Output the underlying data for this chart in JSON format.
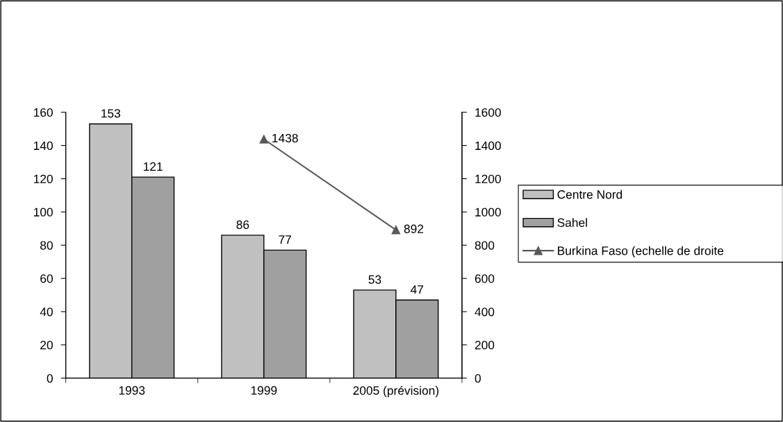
{
  "chart_data": {
    "type": "bar",
    "categories": [
      "1993",
      "1999",
      "2005 (prévision)"
    ],
    "series": [
      {
        "name": "Centre Nord",
        "color": "#c0c0c0",
        "values": [
          153,
          86,
          53
        ]
      },
      {
        "name": "Sahel",
        "color": "#a0a0a0",
        "values": [
          121,
          77,
          47
        ]
      },
      {
        "name": "Burkina Faso (echelle de droite",
        "type": "line",
        "axis": "y2",
        "color": "#595959",
        "marker": "triangle",
        "values": [
          null,
          1438,
          892
        ]
      }
    ],
    "ylim": [
      0,
      160
    ],
    "yticks": [
      0,
      20,
      40,
      60,
      80,
      100,
      120,
      140,
      160
    ],
    "y2lim": [
      0,
      1600
    ],
    "y2ticks": [
      0,
      200,
      400,
      600,
      800,
      1000,
      1200,
      1400,
      1600
    ],
    "data_labels": true,
    "legend": "right",
    "grid": false
  }
}
